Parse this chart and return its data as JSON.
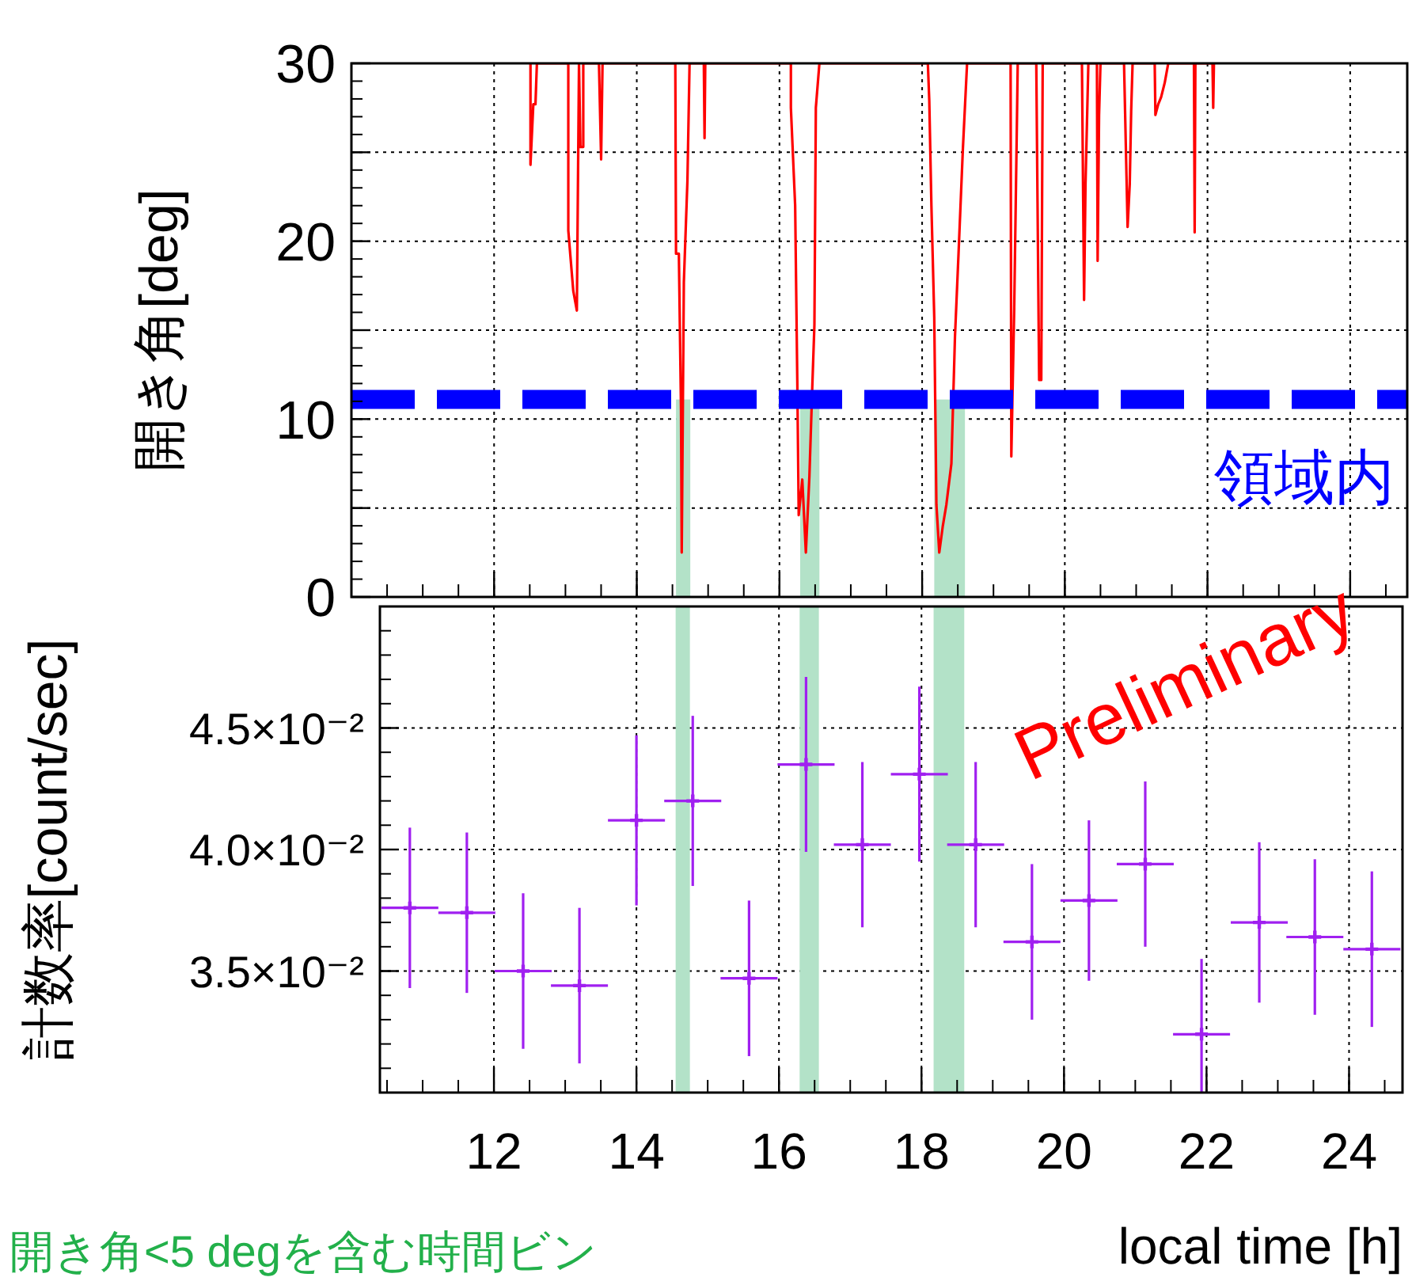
{
  "chart_data": [
    {
      "type": "line",
      "ylabel": "開き角[deg]",
      "x": [
        12.51,
        12.51,
        12.55,
        12.58,
        12.6,
        13.04,
        13.04,
        13.11,
        13.16,
        13.19,
        13.21,
        13.25,
        13.25,
        13.47,
        13.5,
        13.52,
        14.54,
        14.55,
        14.59,
        14.62,
        14.63,
        14.66,
        14.71,
        14.74,
        14.94,
        14.95,
        14.96,
        16.16,
        16.16,
        16.22,
        16.25,
        16.27,
        16.32,
        16.37,
        16.42,
        16.46,
        16.49,
        16.51,
        16.56,
        18.08,
        18.1,
        18.13,
        18.17,
        18.2,
        18.24,
        18.29,
        18.34,
        18.41,
        18.46,
        18.51,
        18.57,
        18.63,
        19.24,
        19.25,
        19.29,
        19.33,
        19.34,
        19.6,
        19.64,
        19.67,
        19.69,
        20.24,
        20.27,
        20.29,
        20.33,
        20.45,
        20.46,
        20.48,
        20.5,
        20.83,
        20.88,
        20.91,
        20.93,
        20.95,
        21.26,
        21.27,
        21.31,
        21.35,
        21.4,
        21.45,
        21.81,
        21.82,
        21.83,
        22.07,
        22.08,
        22.09
      ],
      "series": [
        {
          "color": "#ff0000",
          "values": [
            30,
            24.3,
            27.7,
            27.7,
            30,
            30,
            20.6,
            17.2,
            16.1,
            30,
            25.3,
            25.3,
            30,
            30,
            24.6,
            30,
            30,
            19.3,
            19.3,
            10.5,
            2.5,
            17.7,
            23.4,
            30,
            30,
            25.8,
            30,
            30,
            27.5,
            22.0,
            12.2,
            4.6,
            6.6,
            2.5,
            6.8,
            11.8,
            15.3,
            27.5,
            30,
            30,
            27.9,
            22.0,
            15.7,
            5.2,
            2.5,
            4.0,
            5.2,
            7.5,
            14.6,
            19.3,
            25.1,
            30,
            30,
            7.9,
            16.1,
            27.1,
            30,
            30,
            12.2,
            12.2,
            30,
            30,
            16.7,
            23.2,
            30,
            30,
            18.9,
            27.1,
            30,
            30,
            20.8,
            23.2,
            27.3,
            30,
            30,
            27.1,
            27.7,
            28.1,
            28.9,
            30,
            30,
            20.5,
            30,
            30,
            27.5,
            30
          ]
        }
      ],
      "xlim": [
        10,
        24.8
      ],
      "ylim": [
        0,
        30
      ],
      "xticks": [
        12,
        14,
        16,
        18,
        20,
        22,
        24
      ],
      "yticks": [
        0,
        {
          "value": 5,
          "label": null
        },
        10,
        {
          "value": 15,
          "label": null
        },
        20,
        {
          "value": 25,
          "label": null
        },
        30
      ],
      "grid": true,
      "tick_labels": "y",
      "line_style": "solid",
      "ref_lines": [
        {
          "axis": "y",
          "value": 11.1,
          "label": "領域内",
          "color": "#0000ff",
          "line_style": "dashed"
        }
      ],
      "bands": [
        {
          "axis": "x",
          "from": 14.55,
          "to": 14.75,
          "color": "#b3e2c8"
        },
        {
          "axis": "x",
          "from": 16.29,
          "to": 16.56,
          "color": "#b3e2c8"
        },
        {
          "axis": "x",
          "from": 18.17,
          "to": 18.6,
          "color": "#b3e2c8"
        }
      ]
    },
    {
      "type": "scatter",
      "xlabel": "local time [h]",
      "ylabel": "計数率[count/sec]",
      "x": [
        10.82,
        11.62,
        12.41,
        13.2,
        14.0,
        14.79,
        15.58,
        16.38,
        17.17,
        17.97,
        18.76,
        19.55,
        20.35,
        21.14,
        21.93,
        22.74,
        23.52,
        24.32
      ],
      "series": [
        {
          "color": "#a020f0",
          "values": [
            0.0376,
            0.0374,
            0.035,
            0.0344,
            0.0412,
            0.042,
            0.0347,
            0.0435,
            0.0402,
            0.0431,
            0.0402,
            0.0362,
            0.0379,
            0.0394,
            0.0324,
            0.037,
            0.0364,
            0.0359
          ],
          "errors": [
            0.0033,
            0.0033,
            0.0032,
            0.0032,
            0.0035,
            0.0035,
            0.0032,
            0.0036,
            0.0034,
            0.0036,
            0.0034,
            0.0032,
            0.0033,
            0.0034,
            0.0031,
            0.0033,
            0.0032,
            0.0032
          ],
          "xerrors": [
            0.4,
            0.4,
            0.4,
            0.4,
            0.4,
            0.4,
            0.4,
            0.4,
            0.4,
            0.4,
            0.4,
            0.4,
            0.4,
            0.4,
            0.4,
            0.4,
            0.4,
            0.4
          ]
        }
      ],
      "marker": "cross",
      "xlim": [
        10.4,
        24.75
      ],
      "ylim": [
        0.03,
        0.05
      ],
      "xticks": [
        12,
        14,
        16,
        18,
        20,
        22,
        24
      ],
      "yticks": [
        {
          "value": 0.035,
          "label": "3.5×10⁻²"
        },
        {
          "value": 0.04,
          "label": "4.0×10⁻²"
        },
        {
          "value": 0.045,
          "label": "4.5×10⁻²"
        }
      ],
      "grid": true,
      "bands": [
        {
          "axis": "x",
          "from": 14.55,
          "to": 14.75,
          "color": "#b3e2c8"
        },
        {
          "axis": "x",
          "from": 16.29,
          "to": 16.56,
          "color": "#b3e2c8"
        },
        {
          "axis": "x",
          "from": 18.17,
          "to": 18.6,
          "color": "#b3e2c8"
        }
      ],
      "annotations": [
        "Preliminary",
        "開き角<5 degを含む時間ビン"
      ]
    }
  ]
}
